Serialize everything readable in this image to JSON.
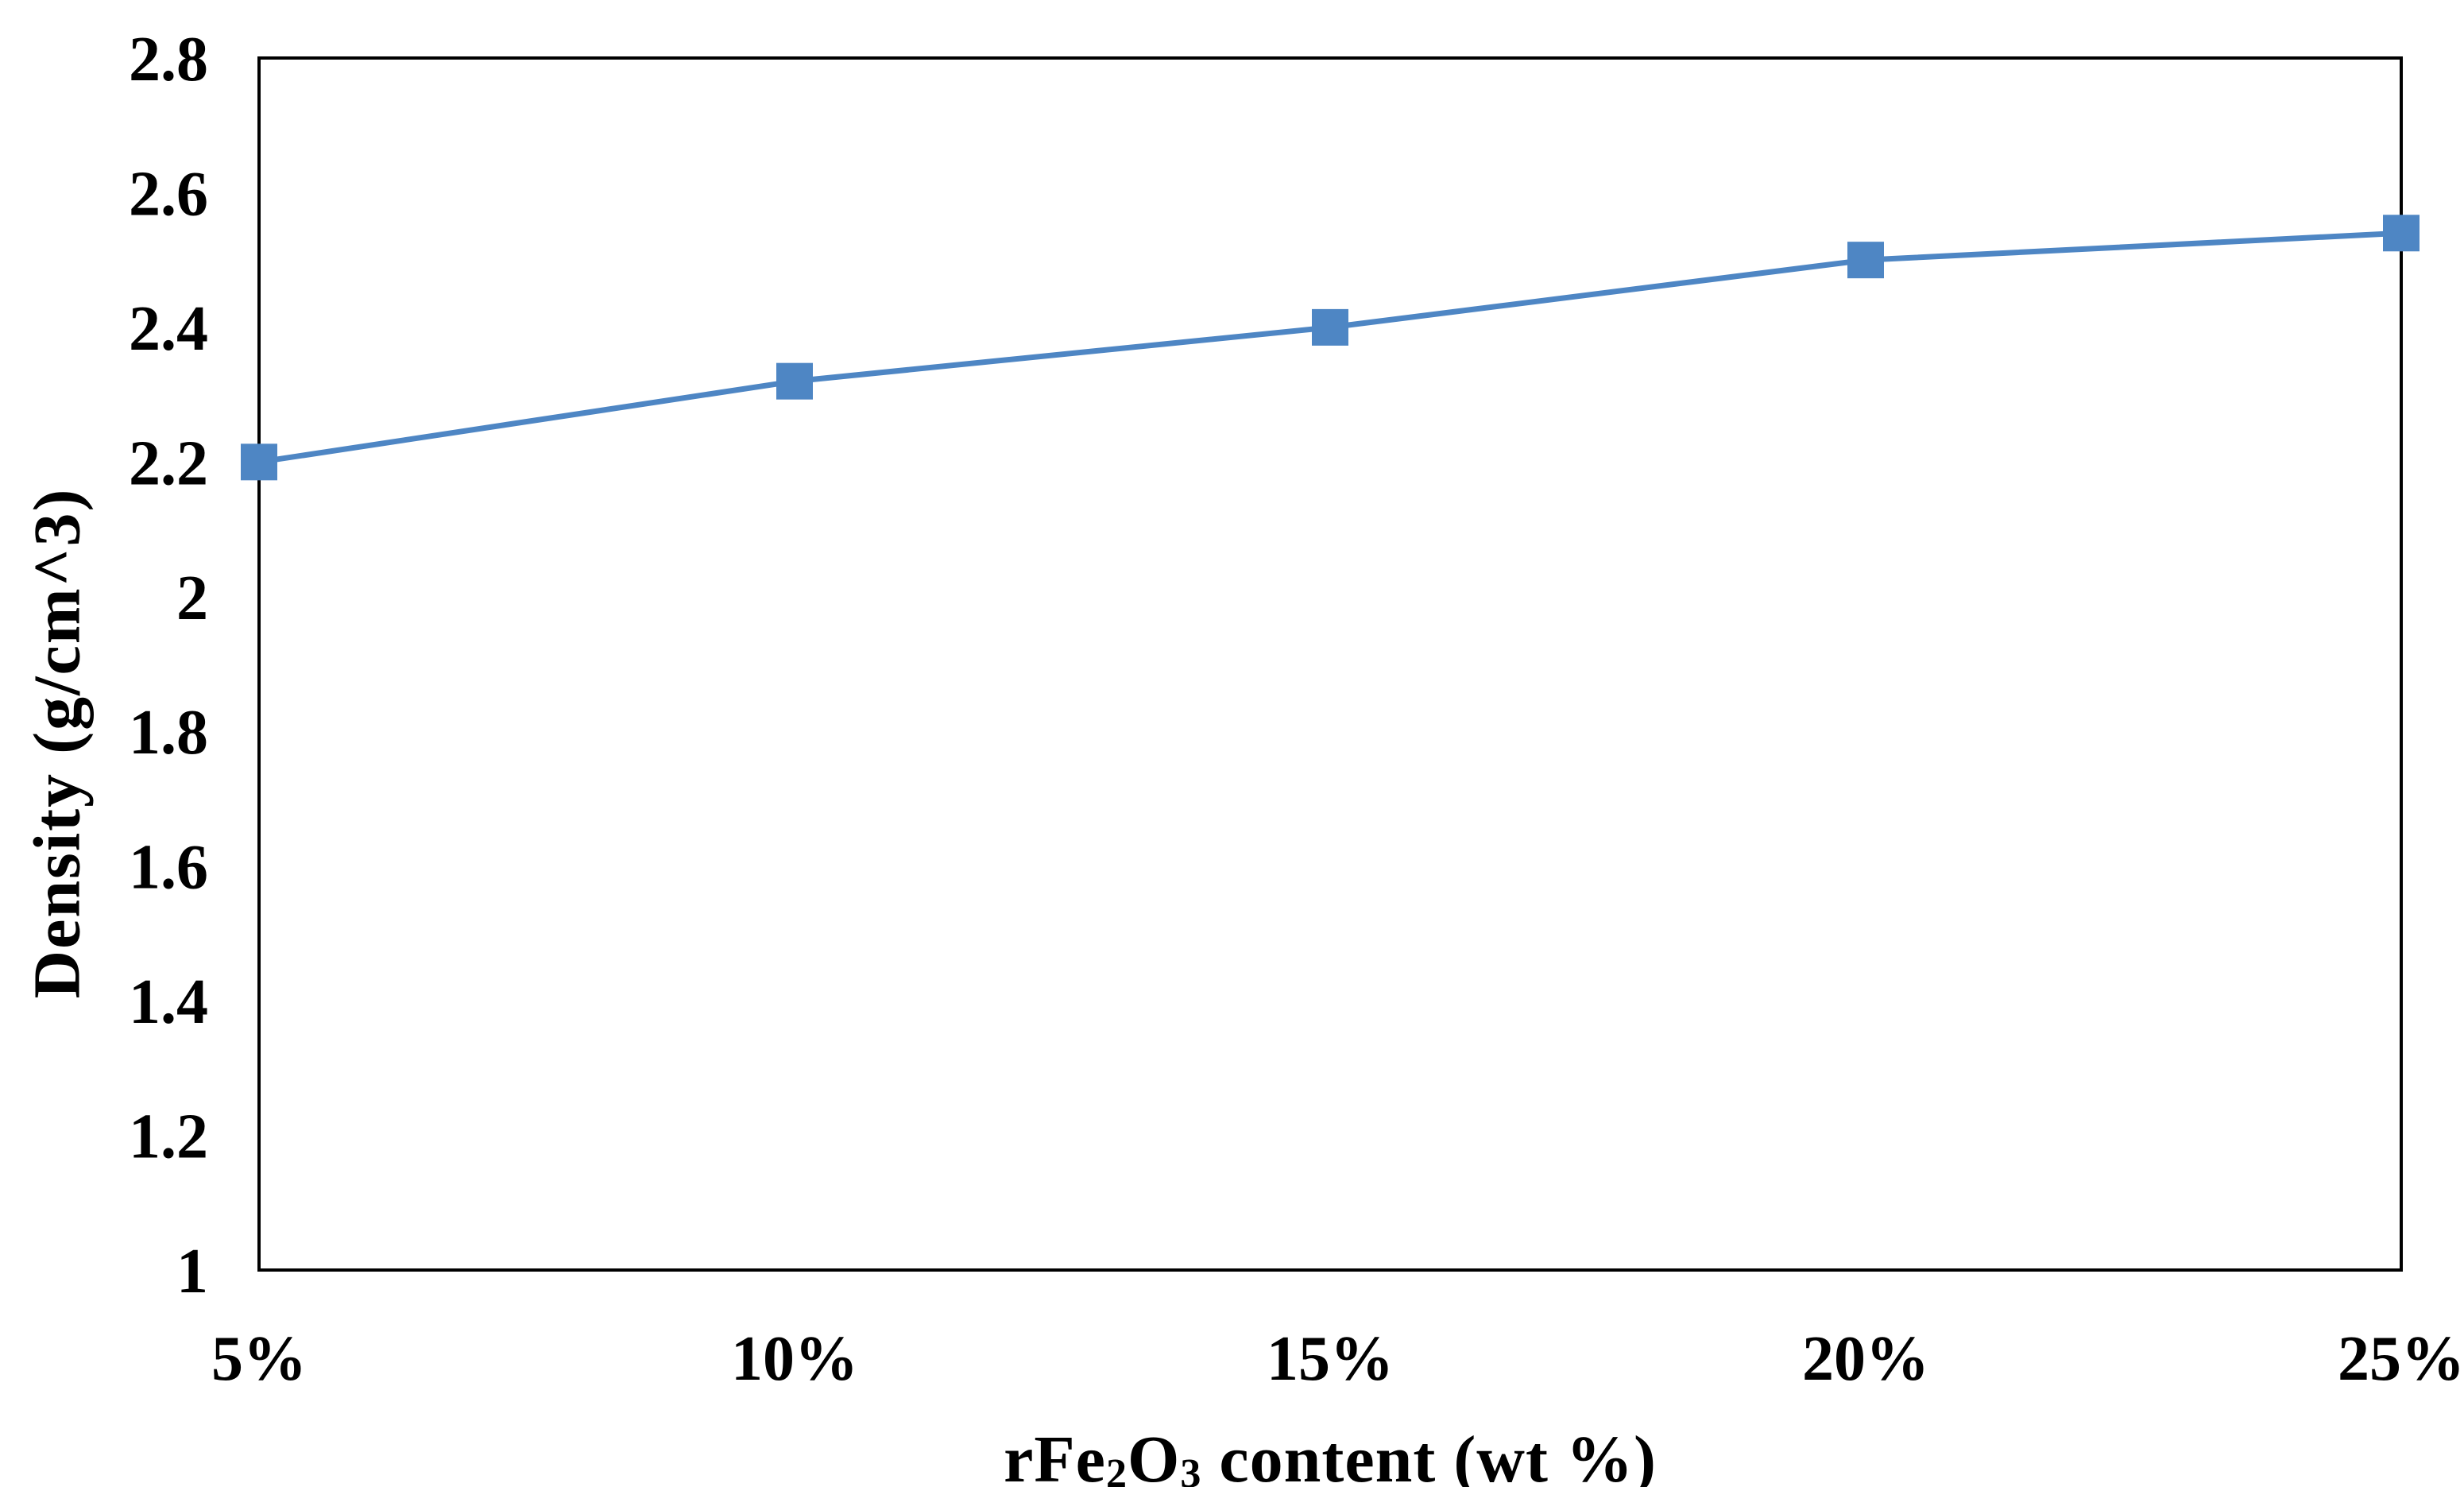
{
  "figure": {
    "background_color": "#ffffff",
    "text_color": "#000000"
  },
  "chart_data": {
    "type": "line",
    "title": "",
    "categories": [
      "5%",
      "10%",
      "15%",
      "20%",
      "25%"
    ],
    "series": [
      {
        "name": "Density",
        "values": [
          2.2,
          2.32,
          2.4,
          2.5,
          2.54
        ],
        "color": "#4E86C4",
        "marker": "square"
      }
    ],
    "xlabel": "rFe2O3 content (wt %)",
    "xlabel_parts": [
      {
        "text": "rFe",
        "sub": false
      },
      {
        "text": "2",
        "sub": true
      },
      {
        "text": "O",
        "sub": false
      },
      {
        "text": "3",
        "sub": true
      },
      {
        "text": " content (wt %)",
        "sub": false
      }
    ],
    "ylabel": "Density (g/cm^3)",
    "ylim": [
      1,
      2.8
    ],
    "ytick_step": 0.2,
    "ytick_labels": [
      "1",
      "1.2",
      "1.4",
      "1.6",
      "1.8",
      "2",
      "2.2",
      "2.4",
      "2.6",
      "2.8"
    ],
    "grid": false,
    "legend": "none",
    "axis_color": "#000000",
    "plot_border": true
  }
}
